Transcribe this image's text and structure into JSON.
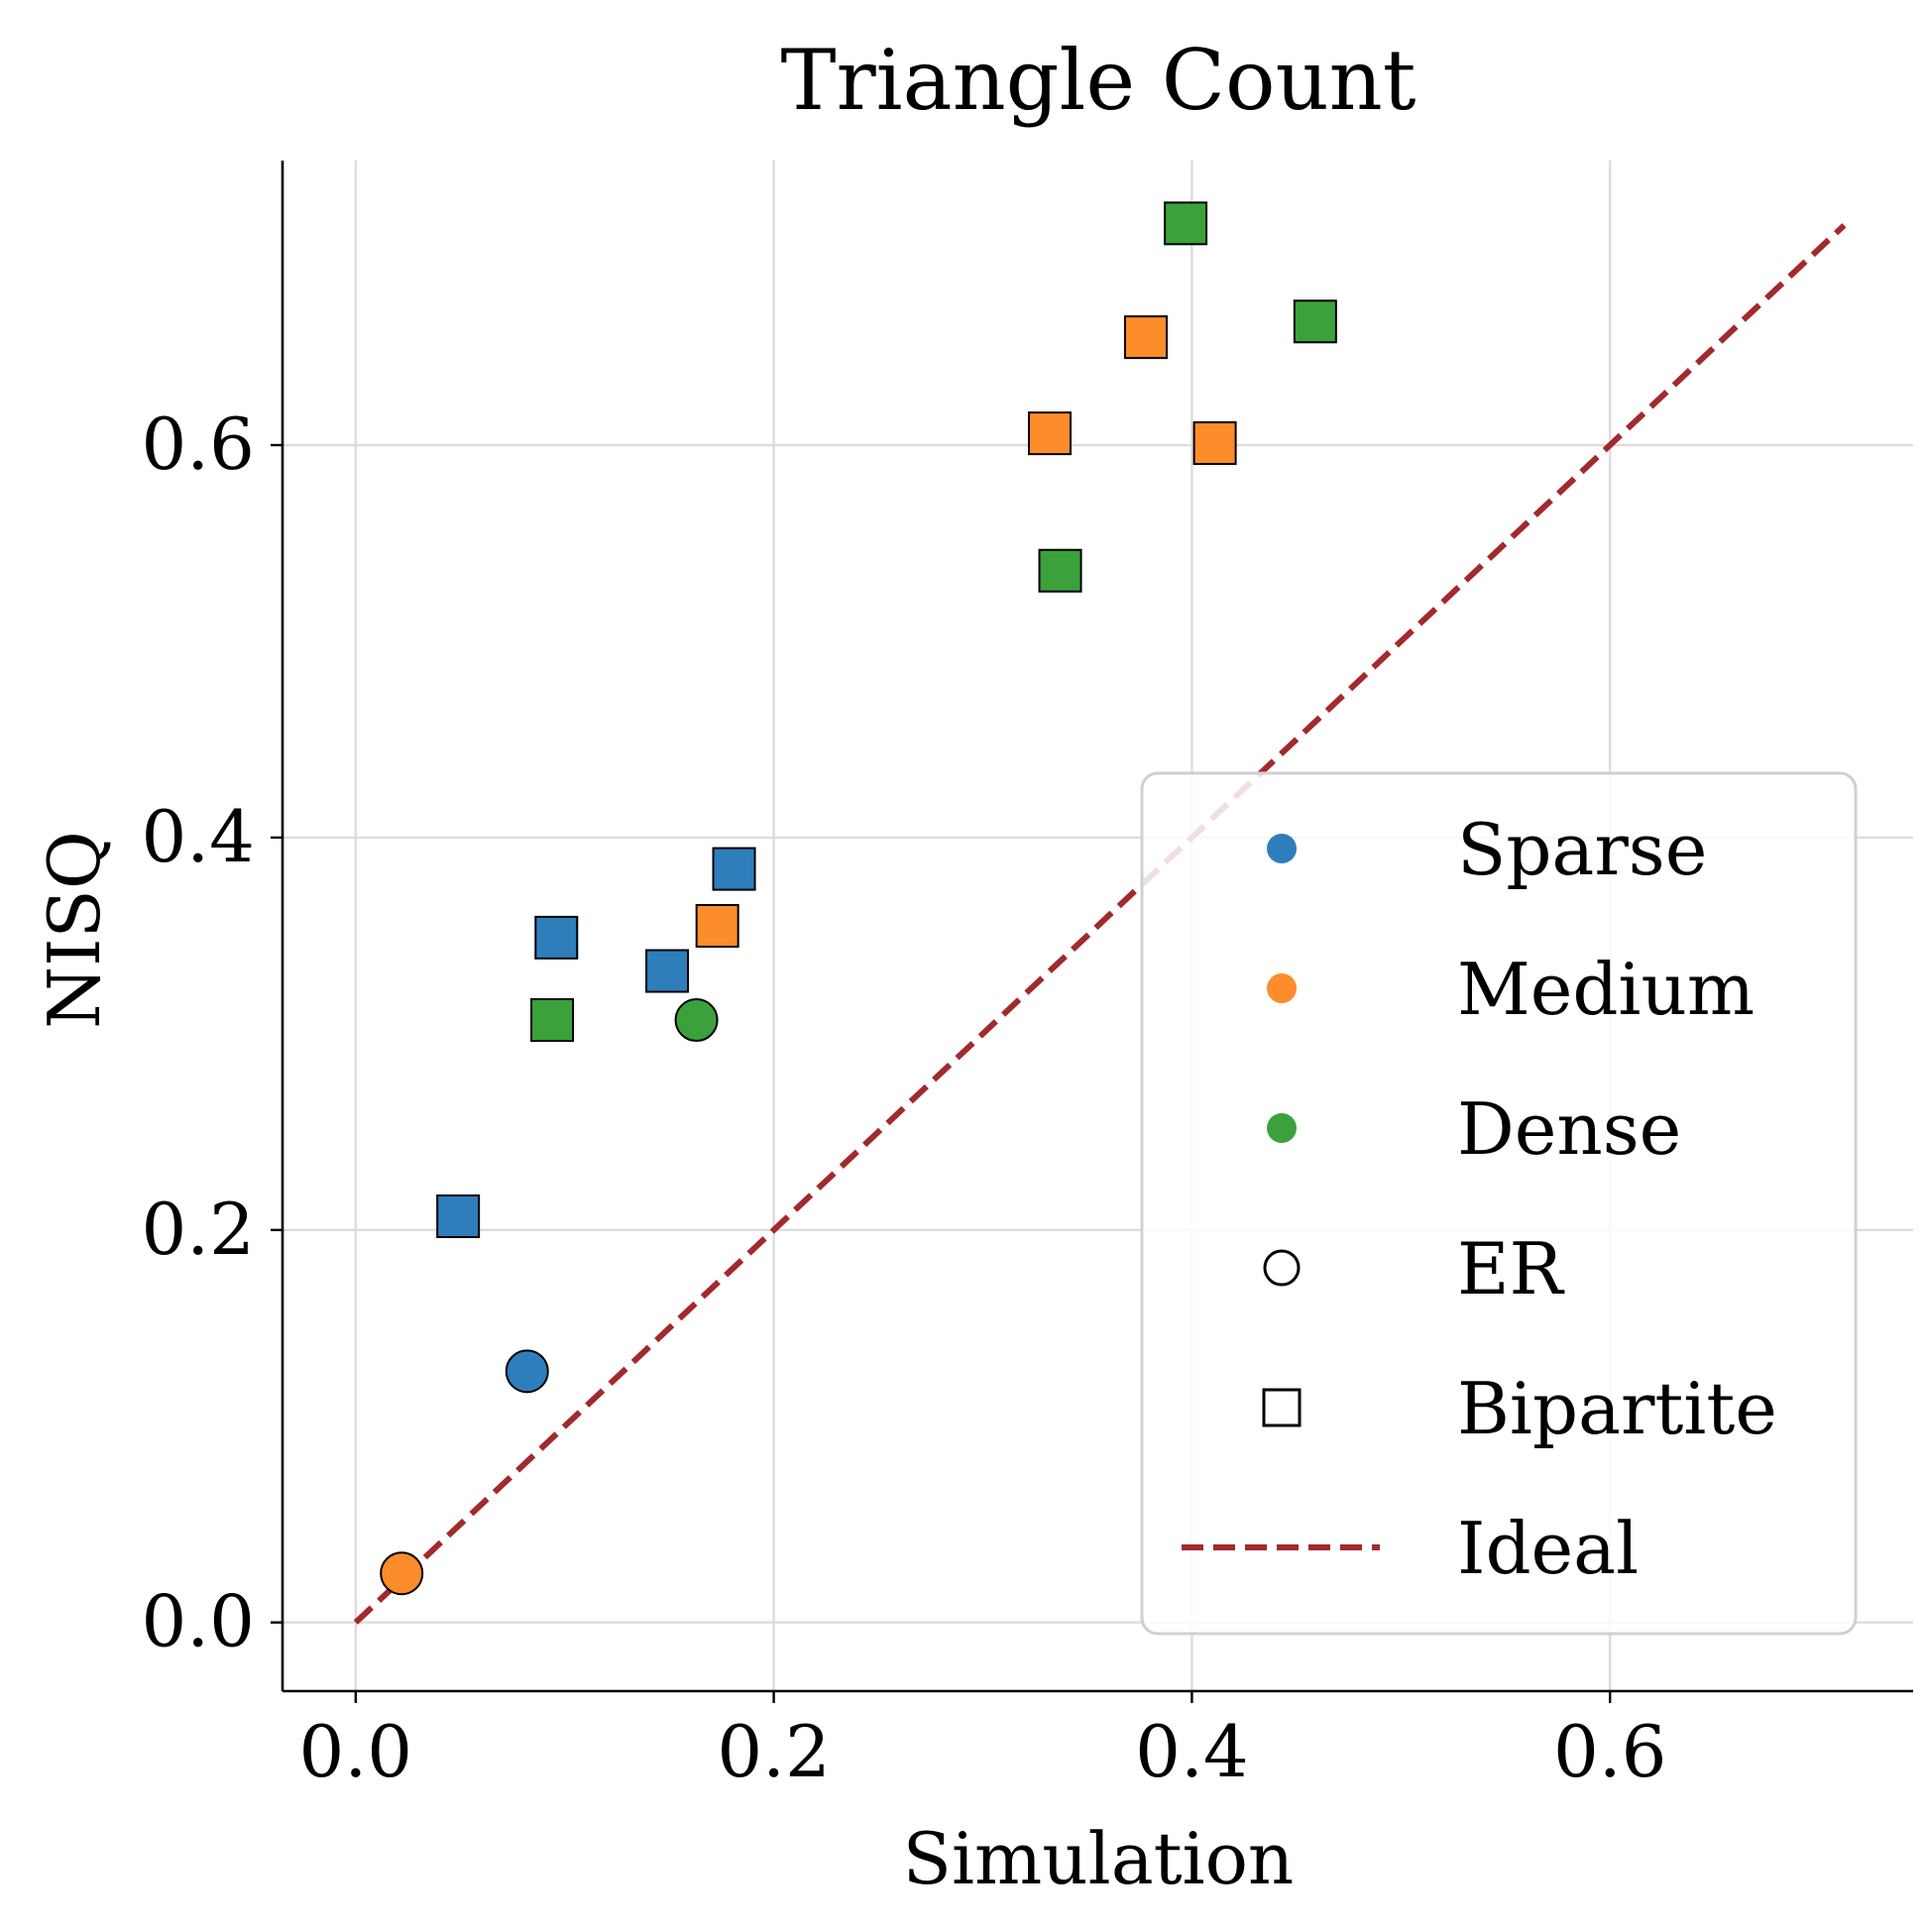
{
  "chart_data": {
    "type": "scatter",
    "title": "Triangle Count",
    "xlabel": "Simulation",
    "ylabel": "NISQ",
    "xlim": [
      -0.035,
      0.745
    ],
    "ylim": [
      -0.035,
      0.745
    ],
    "x_ticks": [
      0.0,
      0.2,
      0.4,
      0.6
    ],
    "y_ticks": [
      0.0,
      0.2,
      0.4,
      0.6
    ],
    "x_tick_labels": [
      "0.0",
      "0.2",
      "0.4",
      "0.6"
    ],
    "y_tick_labels": [
      "0.0",
      "0.2",
      "0.4",
      "0.6"
    ],
    "grid": true,
    "legend_position": "lower right",
    "colors": {
      "Sparse": "#2e7ebc",
      "Medium": "#fd8c2a",
      "Dense": "#3ba23b",
      "Ideal": "#a3292c"
    },
    "points": [
      {
        "x": 0.022,
        "y": 0.025,
        "density": "Medium",
        "graph": "ER"
      },
      {
        "x": 0.082,
        "y": 0.128,
        "density": "Sparse",
        "graph": "ER"
      },
      {
        "x": 0.163,
        "y": 0.307,
        "density": "Dense",
        "graph": "ER"
      },
      {
        "x": 0.049,
        "y": 0.207,
        "density": "Sparse",
        "graph": "Bipartite"
      },
      {
        "x": 0.096,
        "y": 0.349,
        "density": "Sparse",
        "graph": "Bipartite"
      },
      {
        "x": 0.149,
        "y": 0.332,
        "density": "Sparse",
        "graph": "Bipartite"
      },
      {
        "x": 0.181,
        "y": 0.384,
        "density": "Sparse",
        "graph": "Bipartite"
      },
      {
        "x": 0.094,
        "y": 0.307,
        "density": "Dense",
        "graph": "Bipartite"
      },
      {
        "x": 0.173,
        "y": 0.355,
        "density": "Medium",
        "graph": "Bipartite"
      },
      {
        "x": 0.332,
        "y": 0.606,
        "density": "Medium",
        "graph": "Bipartite"
      },
      {
        "x": 0.378,
        "y": 0.655,
        "density": "Medium",
        "graph": "Bipartite"
      },
      {
        "x": 0.411,
        "y": 0.601,
        "density": "Medium",
        "graph": "Bipartite"
      },
      {
        "x": 0.337,
        "y": 0.536,
        "density": "Dense",
        "graph": "Bipartite"
      },
      {
        "x": 0.397,
        "y": 0.713,
        "density": "Dense",
        "graph": "Bipartite"
      },
      {
        "x": 0.459,
        "y": 0.663,
        "density": "Dense",
        "graph": "Bipartite"
      }
    ],
    "ideal_line": {
      "x": [
        0.0,
        0.712
      ],
      "y": [
        0.0,
        0.712
      ]
    },
    "legend": [
      {
        "label": "Sparse",
        "kind": "color",
        "key": "Sparse"
      },
      {
        "label": "Medium",
        "kind": "color",
        "key": "Medium"
      },
      {
        "label": "Dense",
        "kind": "color",
        "key": "Dense"
      },
      {
        "label": "ER",
        "kind": "circle"
      },
      {
        "label": "Bipartite",
        "kind": "square"
      },
      {
        "label": "Ideal",
        "kind": "dashed",
        "key": "Ideal"
      }
    ]
  }
}
